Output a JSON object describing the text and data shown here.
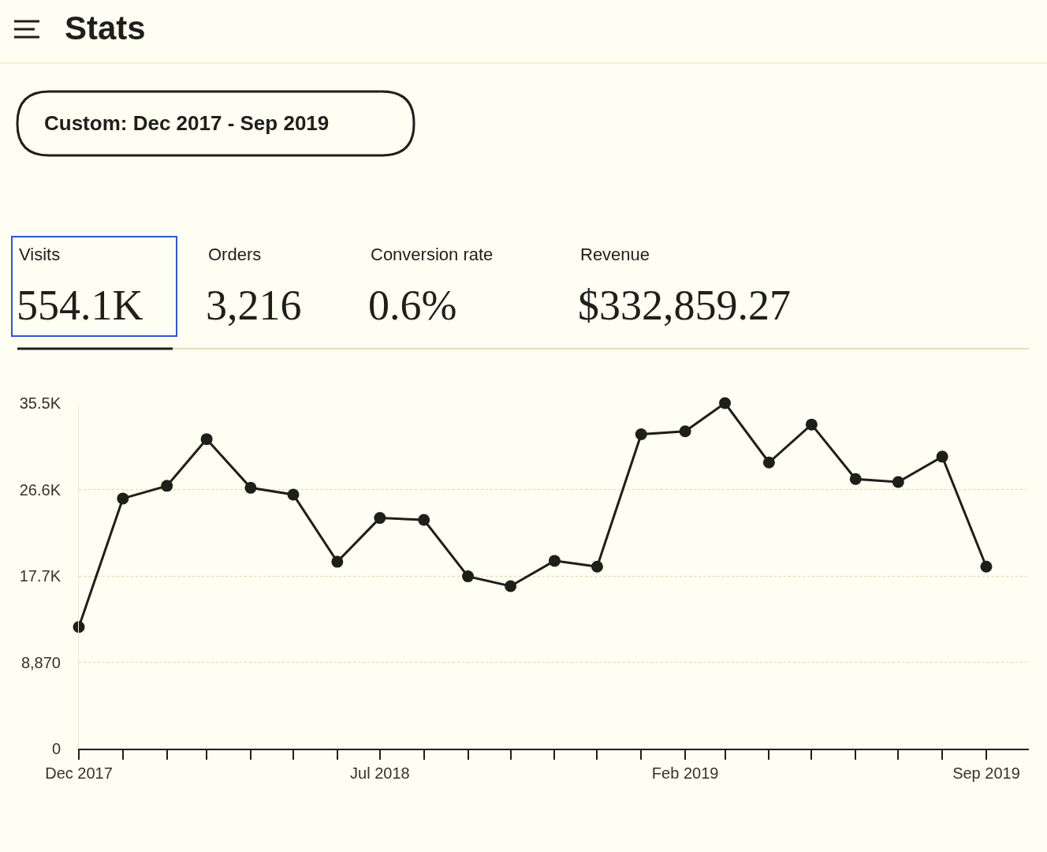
{
  "chart_data": {
    "type": "line",
    "title": "Stats",
    "subtitle": "Custom: Dec 2017 - Sep 2019",
    "annotations": [
      "Visits",
      "554.1K",
      "Orders",
      "3,216",
      "Conversion rate",
      "0.6%",
      "Revenue",
      "$332,859.27"
    ],
    "x": [
      "2017-12",
      "2018-01",
      "2018-02",
      "2018-03",
      "2018-04",
      "2018-05",
      "2018-06",
      "2018-07",
      "2018-08",
      "2018-09",
      "2018-10",
      "2018-11",
      "2018-12",
      "2019-01",
      "2019-02",
      "2019-03",
      "2019-04",
      "2019-05",
      "2019-06",
      "2019-07",
      "2019-08",
      "2019-09"
    ],
    "series": [
      {
        "color": "#1f1f1a",
        "values": [
          12500,
          25700,
          27000,
          31800,
          26800,
          26100,
          19200,
          23700,
          23500,
          17700,
          16700,
          19300,
          18700,
          32300,
          32600,
          35500,
          29400,
          33300,
          27700,
          27400,
          30000,
          18700
        ]
      }
    ],
    "xlim": [
      "2017-12",
      "2019-10"
    ],
    "xticks": [
      {
        "value": "2017-12",
        "label": "Dec 2017"
      },
      {
        "value": "2018-01",
        "label": null
      },
      {
        "value": "2018-02",
        "label": null
      },
      {
        "value": "2018-03",
        "label": null
      },
      {
        "value": "2018-04",
        "label": null
      },
      {
        "value": "2018-05",
        "label": null
      },
      {
        "value": "2018-06",
        "label": null
      },
      {
        "value": "2018-07",
        "label": "Jul 2018"
      },
      {
        "value": "2018-08",
        "label": null
      },
      {
        "value": "2018-09",
        "label": null
      },
      {
        "value": "2018-10",
        "label": null
      },
      {
        "value": "2018-11",
        "label": null
      },
      {
        "value": "2018-12",
        "label": null
      },
      {
        "value": "2019-01",
        "label": null
      },
      {
        "value": "2019-02",
        "label": "Feb 2019"
      },
      {
        "value": "2019-03",
        "label": null
      },
      {
        "value": "2019-04",
        "label": null
      },
      {
        "value": "2019-05",
        "label": null
      },
      {
        "value": "2019-06",
        "label": null
      },
      {
        "value": "2019-07",
        "label": null
      },
      {
        "value": "2019-08",
        "label": null
      },
      {
        "value": "2019-09",
        "label": "Sep 2019"
      }
    ],
    "ylim": [
      0,
      35500
    ],
    "yticks": [
      0,
      {
        "value": 8870,
        "label": "8,870"
      },
      {
        "value": 17740,
        "label": "17.7K"
      },
      {
        "value": 26610,
        "label": "26.6K"
      },
      {
        "value": 35480,
        "label": "35.5K"
      }
    ],
    "grid": "y",
    "marker": "circle",
    "line_style": "solid"
  }
}
